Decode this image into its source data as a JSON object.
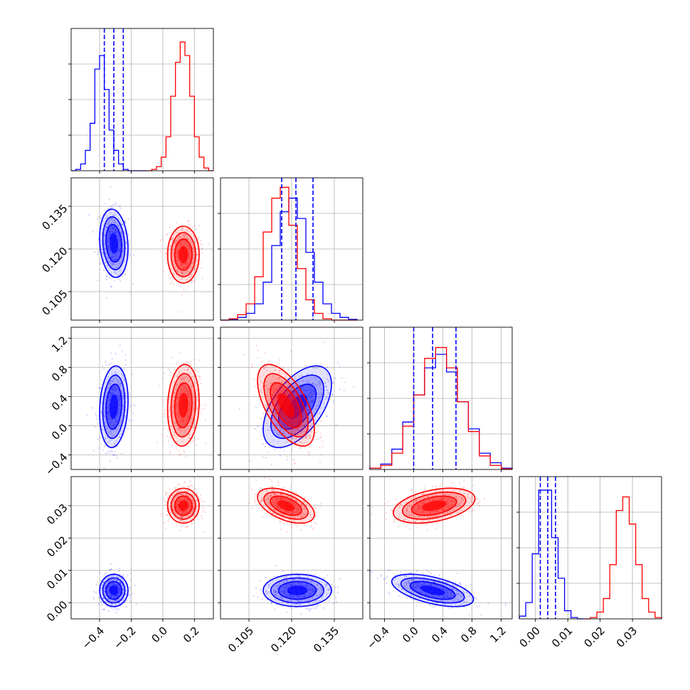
{
  "chart_data": {
    "type": "corner",
    "grid": true,
    "series": [
      {
        "color": "#0000ff"
      },
      {
        "color": "#ff0000"
      }
    ],
    "params": [
      {
        "range": [
          -0.58,
          0.32
        ],
        "ticks": [
          -0.4,
          -0.2,
          0.0,
          0.2
        ],
        "tick_labels": [
          "−0.4",
          "−0.2",
          "0.0",
          "0.2"
        ],
        "quantile_lines": [
          -0.37,
          -0.31,
          -0.25
        ]
      },
      {
        "range": [
          0.095,
          0.145
        ],
        "ticks": [
          0.105,
          0.12,
          0.135
        ],
        "tick_labels": [
          "0.105",
          "0.120",
          "0.135"
        ],
        "quantile_lines": [
          0.1165,
          0.1215,
          0.1275
        ]
      },
      {
        "range": [
          -0.6,
          1.35
        ],
        "ticks": [
          -0.4,
          0.0,
          0.4,
          0.8,
          1.2
        ],
        "tick_labels": [
          "−0.4",
          "0.0",
          "0.4",
          "0.8",
          "1.2"
        ],
        "tick_labels_y": [
          "−0.4",
          "0.0",
          "0.4",
          "0.8",
          "1.2"
        ],
        "quantile_lines": [
          0.0,
          0.26,
          0.58
        ]
      },
      {
        "range": [
          -0.005,
          0.039
        ],
        "ticks": [
          0.0,
          0.01,
          0.02,
          0.03
        ],
        "tick_labels": [
          "0.00",
          "0.01",
          "0.02",
          "0.03"
        ],
        "quantile_lines": [
          0.0015,
          0.0038,
          0.0062
        ]
      }
    ],
    "histograms": [
      {
        "param": 0,
        "blue": {
          "edges": [
            -0.58,
            -0.55,
            -0.52,
            -0.49,
            -0.46,
            -0.43,
            -0.4,
            -0.37,
            -0.34,
            -0.31,
            -0.28,
            -0.25,
            -0.22,
            -0.19,
            -0.16,
            -0.13,
            -0.1
          ],
          "counts": [
            0,
            0.01,
            0.05,
            0.15,
            0.35,
            0.75,
            0.85,
            0.6,
            0.3,
            0.15,
            0.05,
            0.01,
            0,
            0,
            0,
            0
          ]
        },
        "red": {
          "edges": [
            -0.1,
            -0.07,
            -0.04,
            -0.01,
            0.02,
            0.05,
            0.08,
            0.11,
            0.14,
            0.17,
            0.2,
            0.23,
            0.26,
            0.29,
            0.32
          ],
          "counts": [
            0,
            0.01,
            0.03,
            0.1,
            0.25,
            0.55,
            0.8,
            0.95,
            0.85,
            0.55,
            0.25,
            0.1,
            0.02,
            0
          ]
        }
      },
      {
        "param": 1,
        "blue": {
          "edges": [
            0.095,
            0.098,
            0.101,
            0.104,
            0.107,
            0.11,
            0.113,
            0.116,
            0.119,
            0.122,
            0.125,
            0.128,
            0.131,
            0.134,
            0.137,
            0.14,
            0.143
          ],
          "counts": [
            0,
            0.005,
            0.02,
            0.05,
            0.12,
            0.28,
            0.55,
            0.8,
            0.9,
            0.75,
            0.5,
            0.28,
            0.12,
            0.05,
            0.02,
            0.005
          ]
        },
        "red": {
          "edges": [
            0.095,
            0.098,
            0.101,
            0.104,
            0.107,
            0.11,
            0.113,
            0.116,
            0.119,
            0.122,
            0.125,
            0.128,
            0.131,
            0.134,
            0.137,
            0.14,
            0.143
          ],
          "counts": [
            0,
            0.01,
            0.04,
            0.12,
            0.32,
            0.65,
            0.9,
            0.98,
            0.7,
            0.38,
            0.15,
            0.05,
            0.01,
            0,
            0,
            0
          ]
        }
      },
      {
        "param": 2,
        "blue": {
          "edges": [
            -0.6,
            -0.45,
            -0.3,
            -0.15,
            0.0,
            0.15,
            0.3,
            0.45,
            0.6,
            0.75,
            0.9,
            1.05,
            1.2,
            1.35
          ],
          "counts": [
            0.01,
            0.04,
            0.15,
            0.35,
            0.55,
            0.75,
            0.85,
            0.72,
            0.5,
            0.3,
            0.12,
            0.05,
            0.01
          ]
        },
        "red": {
          "edges": [
            -0.6,
            -0.45,
            -0.3,
            -0.15,
            0.0,
            0.15,
            0.3,
            0.45,
            0.6,
            0.75,
            0.9,
            1.05,
            1.2,
            1.35
          ],
          "counts": [
            0.01,
            0.03,
            0.12,
            0.32,
            0.55,
            0.82,
            0.9,
            0.75,
            0.5,
            0.28,
            0.1,
            0.03,
            0.005
          ]
        }
      },
      {
        "param": 3,
        "blue": {
          "edges": [
            -0.005,
            -0.003,
            -0.001,
            0.001,
            0.003,
            0.005,
            0.007,
            0.009,
            0.011,
            0.013,
            0.015
          ],
          "counts": [
            0.02,
            0.12,
            0.48,
            0.95,
            0.95,
            0.6,
            0.3,
            0.06,
            0.01,
            0
          ]
        },
        "red": {
          "edges": [
            0.015,
            0.017,
            0.019,
            0.021,
            0.023,
            0.025,
            0.027,
            0.029,
            0.031,
            0.033,
            0.035,
            0.037,
            0.039
          ],
          "counts": [
            0,
            0.01,
            0.05,
            0.15,
            0.4,
            0.8,
            0.9,
            0.7,
            0.4,
            0.15,
            0.05,
            0.01
          ]
        }
      }
    ],
    "joint_panels": [
      {
        "x_param": 0,
        "y_param": 1
      },
      {
        "x_param": 0,
        "y_param": 2
      },
      {
        "x_param": 1,
        "y_param": 2
      },
      {
        "x_param": 0,
        "y_param": 3
      },
      {
        "x_param": 1,
        "y_param": 3
      },
      {
        "x_param": 2,
        "y_param": 3
      }
    ],
    "distributions": {
      "blue": {
        "mean": [
          -0.31,
          0.122,
          0.26,
          0.0038
        ],
        "std": [
          0.045,
          0.006,
          0.28,
          0.0025
        ],
        "corr": [
          [
            0,
            1,
            -0.15
          ],
          [
            0,
            2,
            0.15
          ],
          [
            1,
            2,
            0.55
          ],
          [
            0,
            3,
            0.0
          ],
          [
            1,
            3,
            0.0
          ],
          [
            2,
            3,
            -0.55
          ]
        ]
      },
      "red": {
        "mean": [
          0.13,
          0.118,
          0.28,
          0.03
        ],
        "std": [
          0.05,
          0.005,
          0.28,
          0.0027
        ],
        "corr": [
          [
            0,
            1,
            0.0
          ],
          [
            0,
            2,
            0.1
          ],
          [
            1,
            2,
            -0.6
          ],
          [
            0,
            3,
            0.0
          ],
          [
            1,
            3,
            -0.5
          ],
          [
            2,
            3,
            0.4
          ]
        ]
      }
    }
  }
}
